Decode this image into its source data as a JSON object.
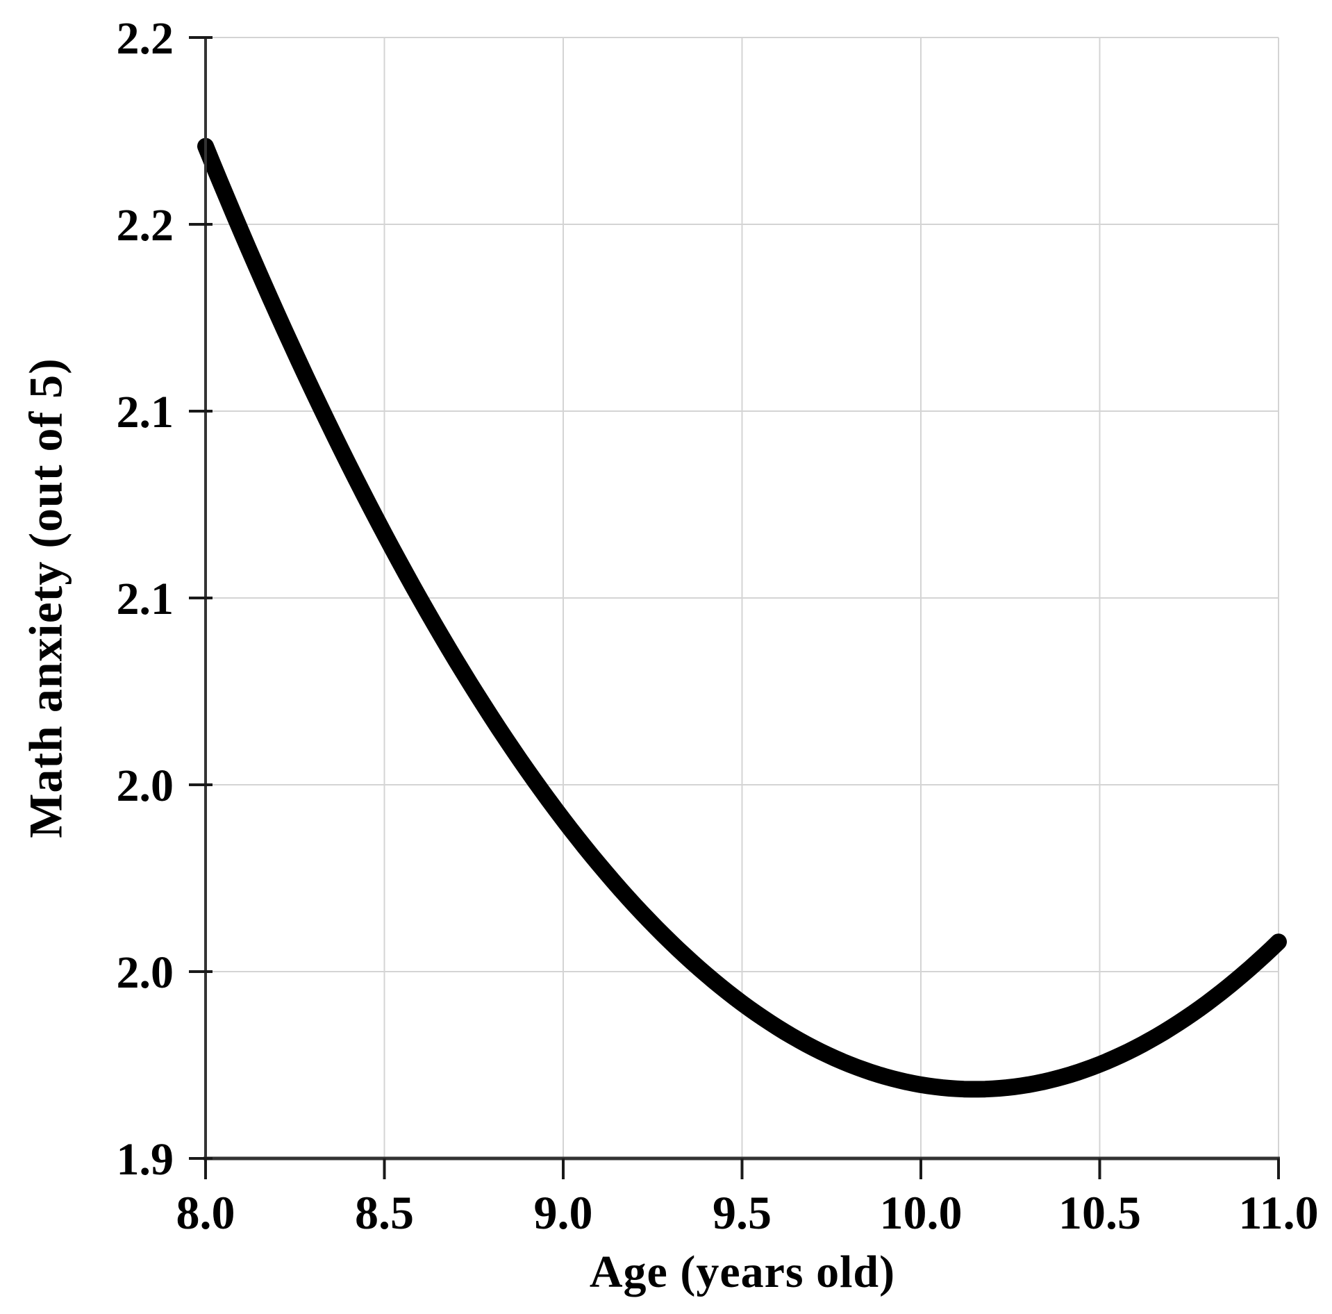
{
  "figure": {
    "background_color": "#ffffff",
    "description": "Quadratic trend curve of math anxiety as a function of age"
  },
  "chart_data": {
    "type": "line",
    "title": "",
    "xlabel": "Age (years old)",
    "ylabel": "Math anxiety (out of 5)",
    "xlim": [
      8.0,
      11.0
    ],
    "ylim": [
      1.9,
      2.2
    ],
    "grid": true,
    "legend": false,
    "x_ticks": [
      {
        "value": 8.0,
        "label": "8.0"
      },
      {
        "value": 8.5,
        "label": "8.5"
      },
      {
        "value": 9.0,
        "label": "9.0"
      },
      {
        "value": 9.5,
        "label": "9.5"
      },
      {
        "value": 10.0,
        "label": "10.0"
      },
      {
        "value": 10.5,
        "label": "10.5"
      },
      {
        "value": 11.0,
        "label": "11.0"
      }
    ],
    "y_ticks": [
      {
        "value": 2.2,
        "label": "2.2"
      },
      {
        "value": 2.15,
        "label": "2.2"
      },
      {
        "value": 2.1,
        "label": "2.1"
      },
      {
        "value": 2.05,
        "label": "2.1"
      },
      {
        "value": 2.0,
        "label": "2.0"
      },
      {
        "value": 1.95,
        "label": "2.0"
      },
      {
        "value": 1.9,
        "label": "1.9"
      }
    ],
    "series": [
      {
        "name": "math-anxiety-vs-age-curve",
        "style": "thick solid curve, round caps",
        "x": [
          8.0,
          8.25,
          8.5,
          8.75,
          9.0,
          9.25,
          9.5,
          9.75,
          10.0,
          10.25,
          10.5,
          10.75,
          11.0
        ],
        "y": [
          2.171,
          2.116,
          2.067,
          2.026,
          1.991,
          1.963,
          1.942,
          1.927,
          1.92,
          1.919,
          1.925,
          1.938,
          1.958
        ],
        "quadratic_fit": {
          "a": 0.0546,
          "vertex_x": 10.15,
          "vertex_y": 1.9185
        }
      }
    ],
    "colors": {
      "curve": "#000000",
      "gridline": "#d4d4d4",
      "axis_line": "#333333",
      "tick_mark": "#1a1a1a",
      "text": "#000000"
    }
  }
}
